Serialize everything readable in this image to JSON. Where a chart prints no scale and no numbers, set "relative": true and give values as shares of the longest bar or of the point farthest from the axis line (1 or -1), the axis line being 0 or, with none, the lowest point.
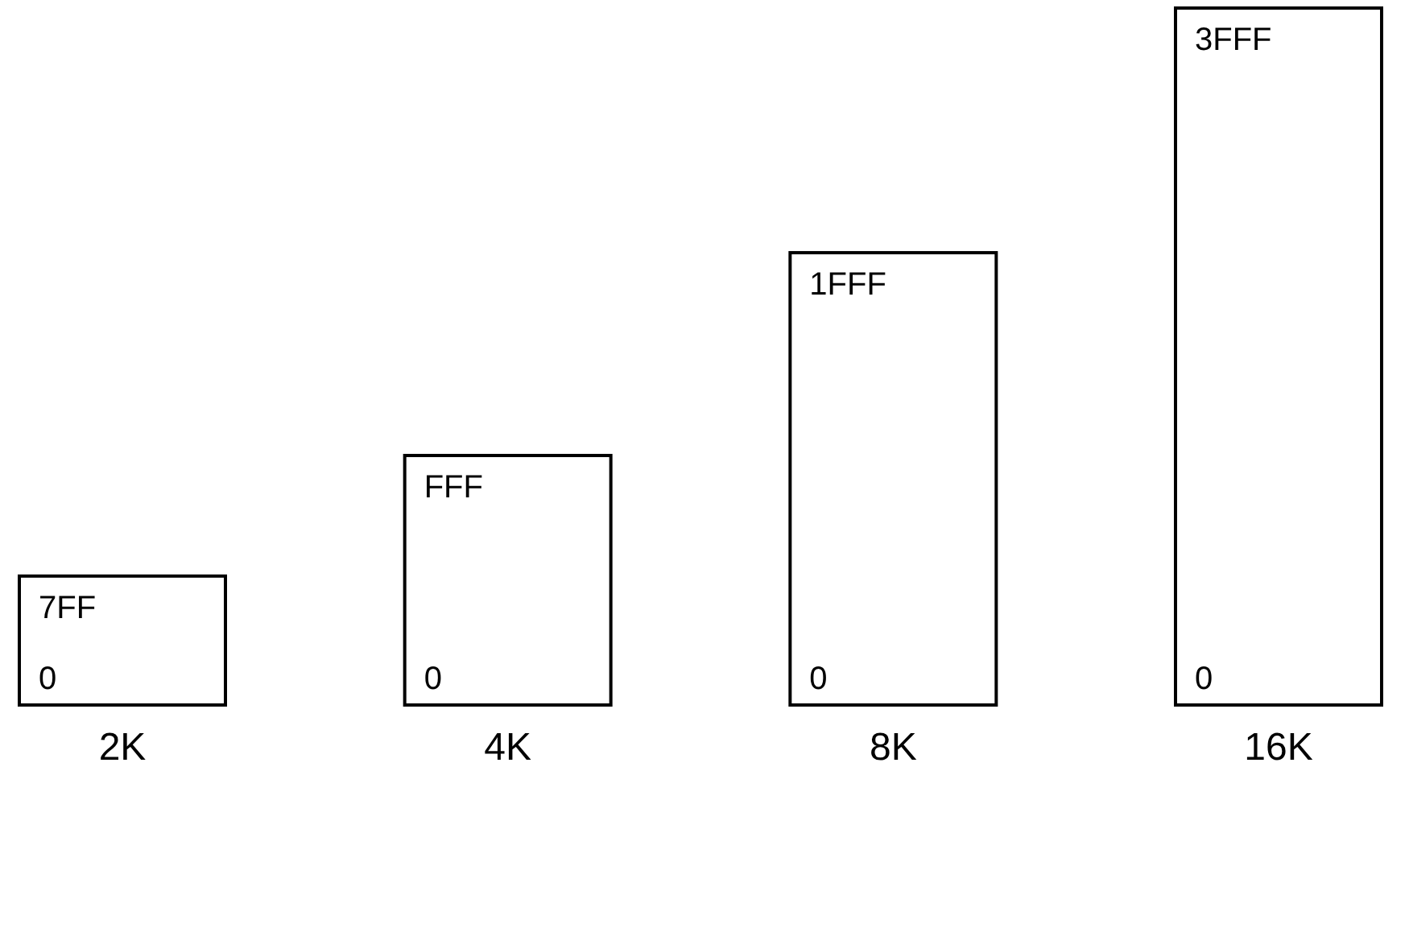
{
  "chart_data": {
    "type": "bar",
    "relative": true,
    "categories": [
      "2K",
      "4K",
      "8K",
      "16K"
    ],
    "series": [
      {
        "color": "#ffffff",
        "values": [
          0.185,
          0.358,
          0.649,
          1
        ]
      }
    ],
    "value_labels": [
      "7FF",
      "FFF",
      "1FFF",
      "3FFF"
    ],
    "annotations": [
      {
        "text": "0",
        "x": "2K",
        "y": 0
      },
      {
        "text": "0",
        "x": "4K",
        "y": 0
      },
      {
        "text": "0",
        "x": "8K",
        "y": 0
      },
      {
        "text": "0",
        "x": "16K",
        "y": 0
      }
    ]
  }
}
